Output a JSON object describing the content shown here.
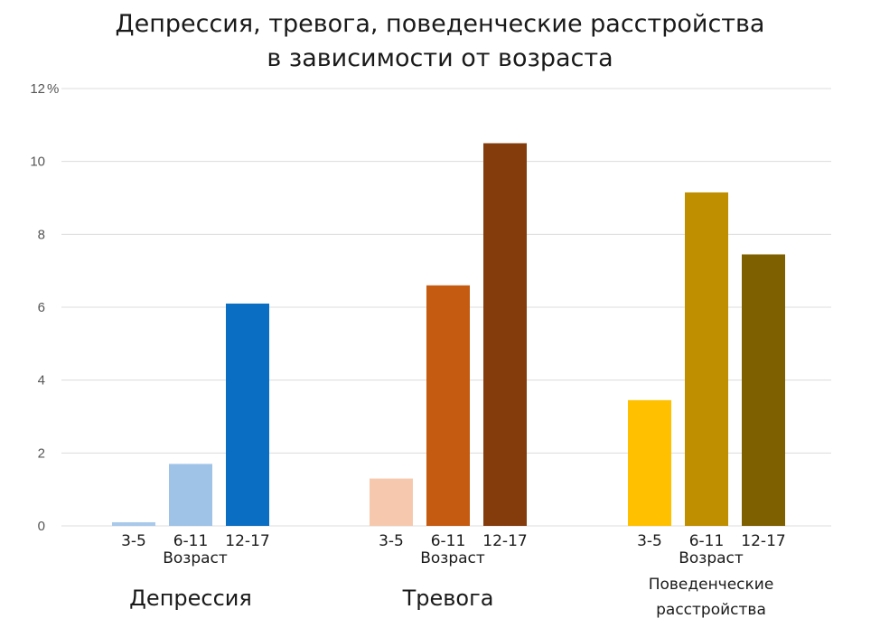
{
  "chart_data": {
    "type": "bar",
    "title": [
      "Депрессия, тревога, поведенческие расстройства",
      "в зависимости от возраста"
    ],
    "y_unit_label": "%",
    "ylim": [
      0,
      12
    ],
    "yticks": [
      "0",
      "2",
      "4",
      "6",
      "8",
      "10",
      "12"
    ],
    "grid": true,
    "axis_sublabel": "Возраст",
    "groups": [
      {
        "name": "Депрессия",
        "categories": [
          "3-5",
          "6-11",
          "12-17"
        ],
        "values": [
          0.1,
          1.7,
          6.1
        ],
        "colors": [
          "#a9c9ea",
          "#9fc2e7",
          "#0a6fc2"
        ]
      },
      {
        "name": "Тревога",
        "categories": [
          "3-5",
          "6-11",
          "12-17"
        ],
        "values": [
          1.3,
          6.6,
          10.5
        ],
        "colors": [
          "#f6c9ae",
          "#c55a11",
          "#843c0c"
        ]
      },
      {
        "name": [
          "Поведенческие",
          "расстройства"
        ],
        "categories": [
          "3-5",
          "6-11",
          "12-17"
        ],
        "values": [
          3.45,
          9.15,
          7.45
        ],
        "colors": [
          "#ffc000",
          "#bf8f00",
          "#7f6000"
        ]
      }
    ]
  }
}
